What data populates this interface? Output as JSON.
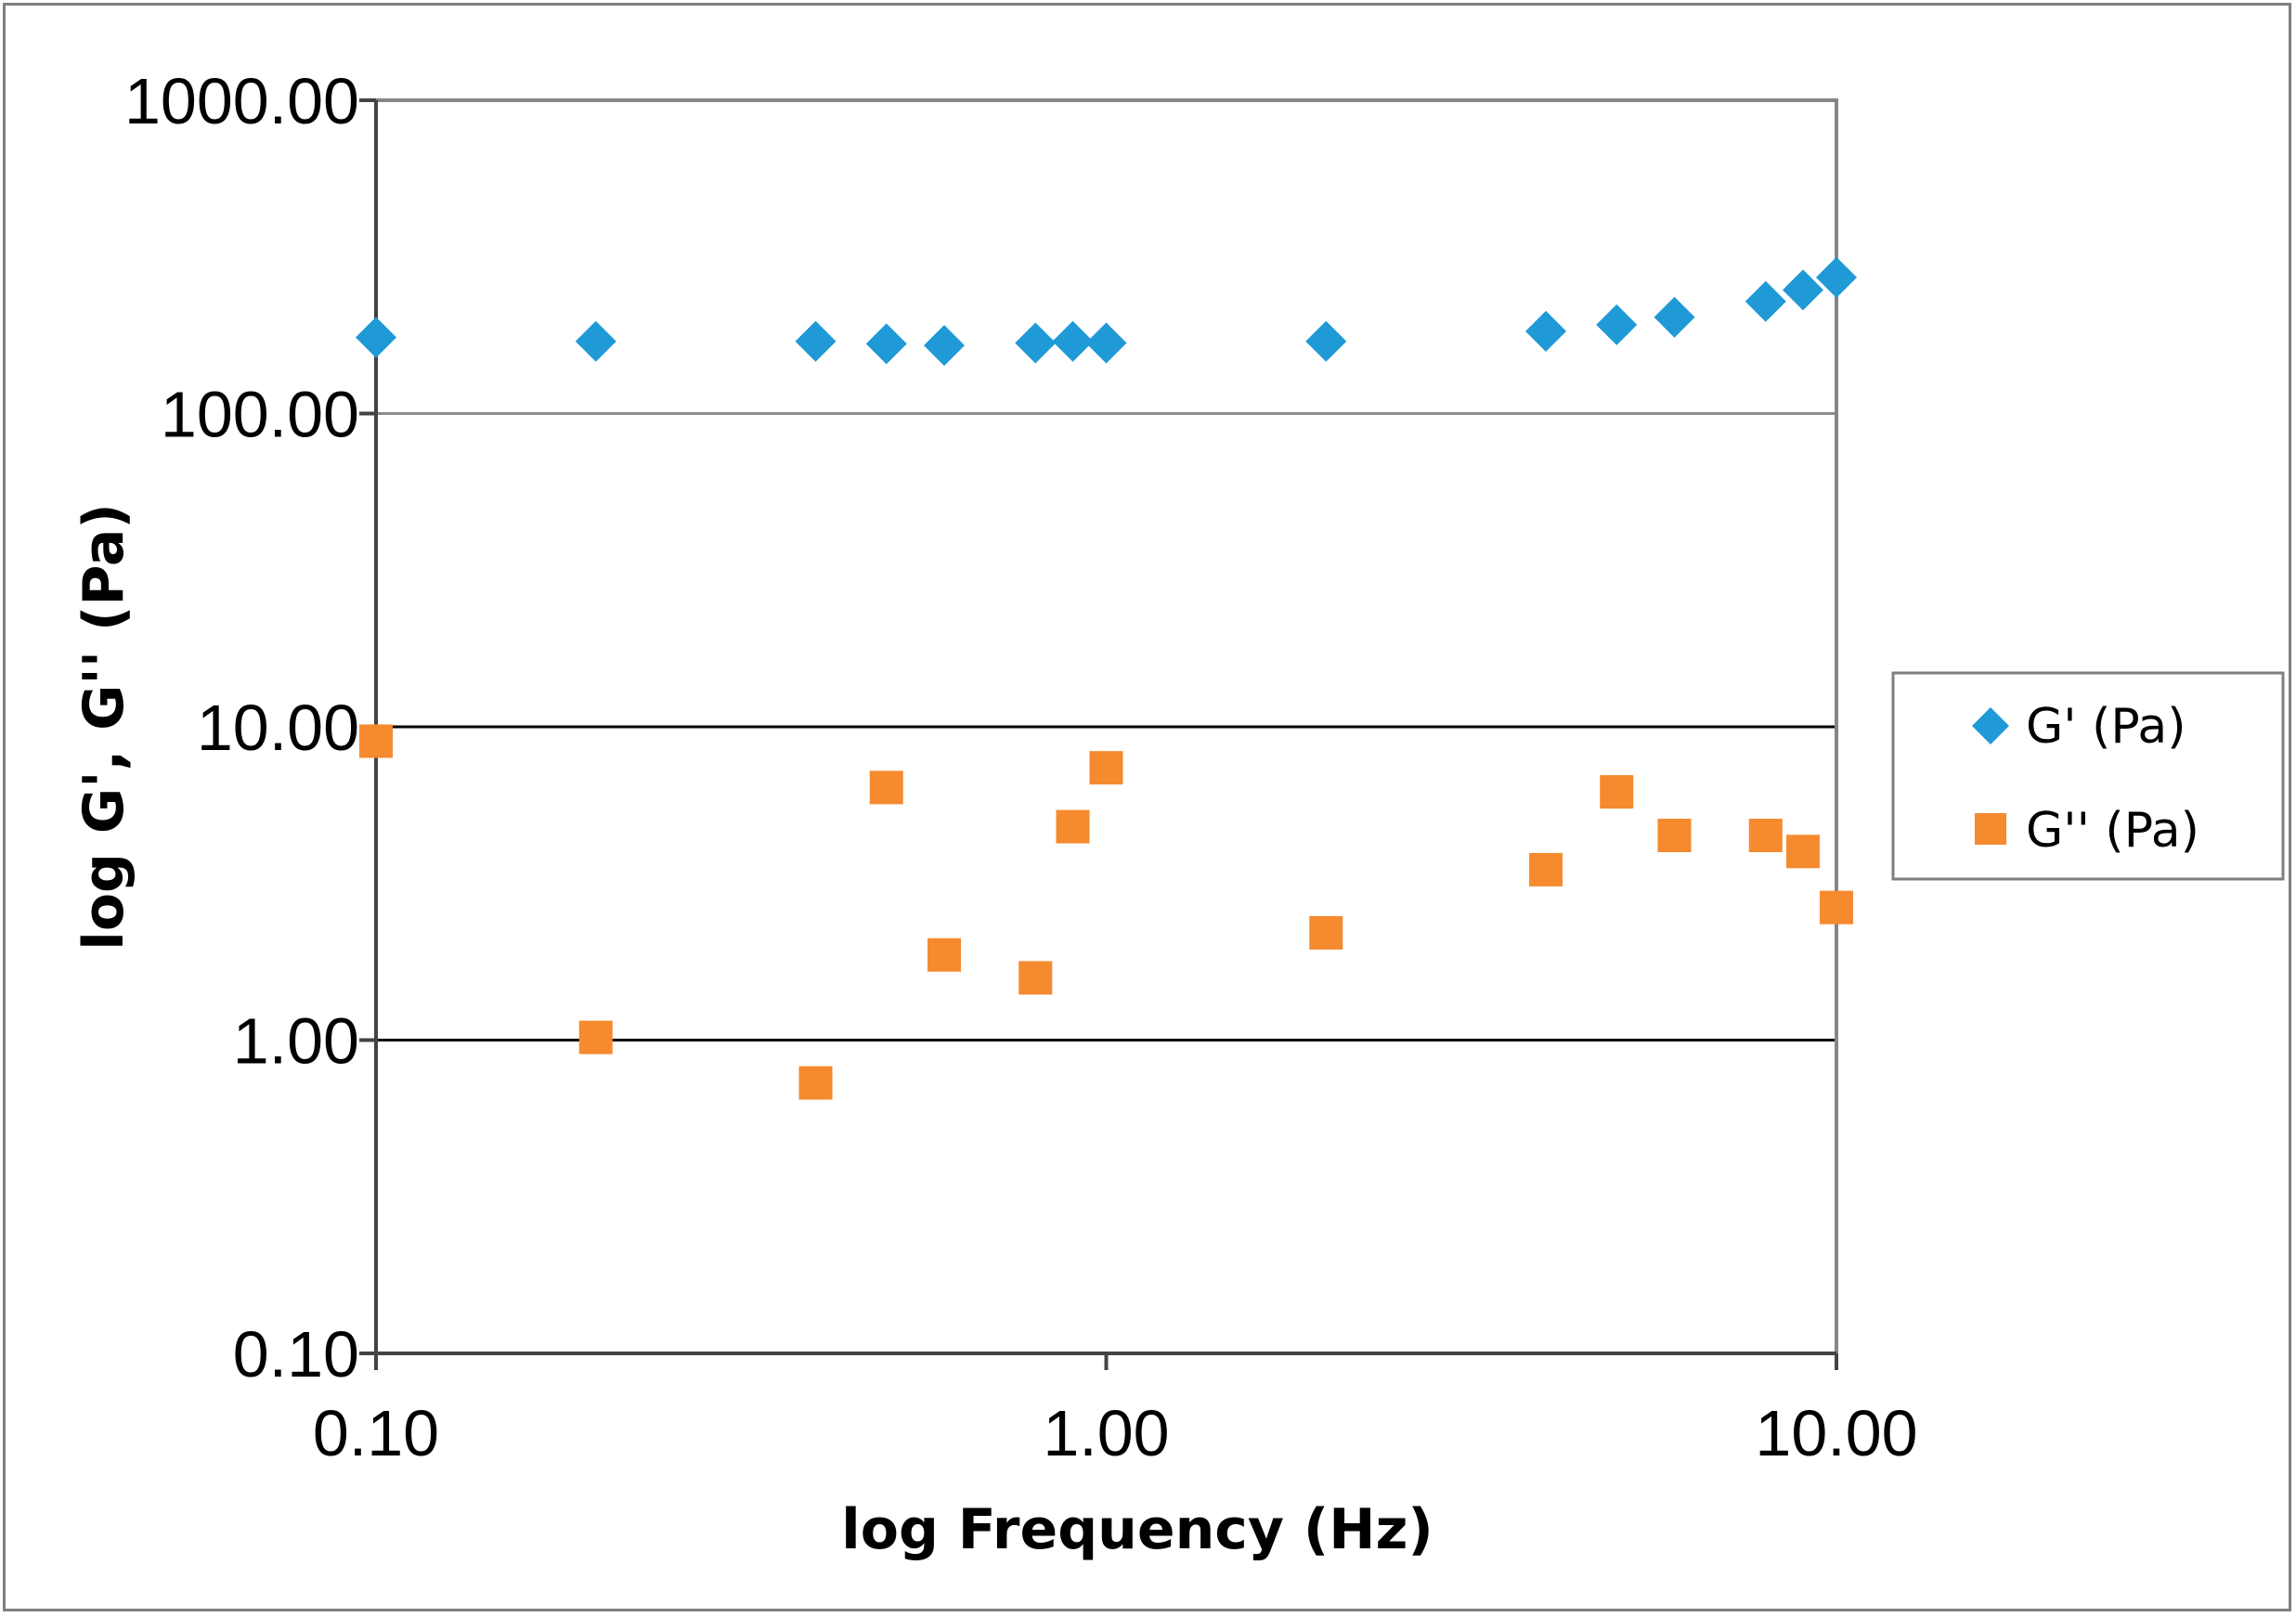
{
  "chart_data": {
    "type": "scatter",
    "title": "",
    "xlabel": "log Frequency (Hz)",
    "ylabel": "log G', G'' (Pa)",
    "xscale": "log",
    "yscale": "log",
    "xlim": [
      0.1,
      10
    ],
    "ylim": [
      0.1,
      1000
    ],
    "x_tick_labels": [
      "0.10",
      "1.00",
      "10.00"
    ],
    "y_tick_labels": [
      "0.10",
      "1.00",
      "10.00",
      "100.00",
      "1000.00"
    ],
    "grid": "horizontal major",
    "legend_position": "right",
    "series": [
      {
        "name": "G' (Pa)",
        "marker": "diamond",
        "color": "#1f9ad6",
        "x": [
          0.1,
          0.2,
          0.4,
          0.5,
          0.6,
          0.8,
          0.9,
          1.0,
          2.0,
          4.0,
          5.0,
          6.0,
          8.0,
          9.0,
          10.0
        ],
        "y": [
          175,
          170,
          170,
          167,
          165,
          168,
          170,
          168,
          170,
          183,
          192,
          203,
          228,
          248,
          272
        ]
      },
      {
        "name": "G'' (Pa)",
        "marker": "square",
        "color": "#f58a2e",
        "x": [
          0.1,
          0.2,
          0.4,
          0.5,
          0.6,
          0.8,
          0.9,
          1.0,
          2.0,
          4.0,
          5.0,
          6.0,
          8.0,
          9.0,
          10.0
        ],
        "y": [
          9.0,
          1.02,
          0.73,
          6.4,
          1.87,
          1.58,
          4.8,
          7.4,
          2.2,
          3.5,
          6.2,
          4.5,
          4.5,
          4.0,
          2.65
        ]
      }
    ]
  }
}
